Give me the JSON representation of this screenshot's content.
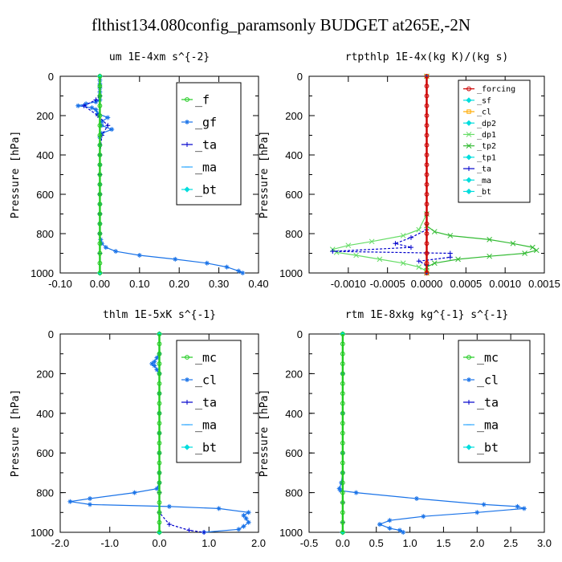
{
  "figure_title": "flthist134.080config_paramsonly  BUDGET at265E,-2N",
  "chart_data": [
    {
      "type": "line",
      "title": "um   1E-4xm s^{-2}",
      "ylabel": "Pressure [hPa]",
      "xlim": [
        -0.1,
        0.4
      ],
      "xticks": [
        "-0.10",
        "0.00",
        "0.10",
        "0.20",
        "0.30",
        "0.40"
      ],
      "xtick_values": [
        -0.1,
        0.0,
        0.1,
        0.2,
        0.3,
        0.4
      ],
      "ylim": [
        1000,
        0
      ],
      "yticks": [
        "0",
        "200",
        "400",
        "600",
        "800",
        "1000"
      ],
      "ytick_values": [
        0,
        200,
        400,
        600,
        800,
        1000
      ],
      "legend": {
        "position": "top-right",
        "entries": [
          "_f",
          "_gf",
          "_ta",
          "_ma",
          "_bt"
        ]
      },
      "series": [
        {
          "name": "_gf",
          "color": "#1a73e8",
          "style": "solid",
          "marker": "star",
          "p": [
            0,
            20,
            40,
            60,
            80,
            100,
            120,
            130,
            140,
            150,
            160,
            170,
            190,
            210,
            230,
            250,
            270,
            290,
            310,
            350,
            400,
            450,
            500,
            550,
            600,
            650,
            700,
            750,
            800,
            830,
            850,
            870,
            890,
            910,
            930,
            950,
            970,
            990,
            1000
          ],
          "x": [
            0.0,
            0.0,
            0.0,
            0.0,
            0.0,
            0.0,
            0.0,
            -0.01,
            -0.035,
            -0.055,
            -0.02,
            -0.01,
            -0.005,
            0.02,
            0.005,
            0.005,
            0.03,
            0.005,
            0.0,
            0.0,
            0.0,
            0.0,
            0.0,
            0.0,
            0.0,
            0.0,
            0.0,
            0.0,
            0.0,
            0.002,
            0.005,
            0.015,
            0.04,
            0.1,
            0.19,
            0.27,
            0.32,
            0.35,
            0.36
          ]
        },
        {
          "name": "_ta",
          "color": "#0000cc",
          "style": "dashed",
          "marker": "plus",
          "p": [
            0,
            100,
            120,
            150,
            200,
            250,
            300,
            400,
            500,
            600,
            700,
            800,
            900,
            1000
          ],
          "x": [
            0.0,
            0.0,
            -0.01,
            -0.04,
            -0.005,
            0.02,
            0.005,
            0.0,
            0.0,
            0.0,
            0.0,
            0.0,
            0.0,
            0.0
          ]
        },
        {
          "name": "_ma",
          "color": "#33aaff",
          "style": "solid",
          "marker": "dash",
          "p": [
            0,
            1000
          ],
          "x": [
            0.0,
            0.0
          ]
        },
        {
          "name": "_bt",
          "color": "#00dddd",
          "style": "solid",
          "marker": "diamond",
          "p": [
            0,
            1000
          ],
          "x": [
            0.0,
            0.0
          ]
        },
        {
          "name": "_f",
          "color": "#22cc22",
          "style": "solid",
          "marker": "circle",
          "p": [
            0,
            50,
            100,
            150,
            200,
            250,
            300,
            350,
            400,
            450,
            500,
            550,
            600,
            650,
            700,
            750,
            800,
            850,
            900,
            950,
            1000
          ],
          "x": [
            0,
            0,
            0,
            0,
            0,
            0,
            0,
            0,
            0,
            0,
            0,
            0,
            0,
            0,
            0,
            0,
            0,
            0,
            0,
            0,
            0
          ]
        }
      ]
    },
    {
      "type": "line",
      "title": "rtpthlp   1E-4x(kg K)/(kg s)",
      "ylabel": "Pressure [hPa]",
      "xlim": [
        -0.0015,
        0.0015
      ],
      "xticks": [
        "-0.0010",
        "-0.0005",
        "0.0000",
        "0.0005",
        "0.0010",
        "0.0015"
      ],
      "xtick_values": [
        -0.001,
        -0.0005,
        0.0,
        0.0005,
        0.001,
        0.0015
      ],
      "ylim": [
        1000,
        0
      ],
      "yticks": [
        "0",
        "200",
        "400",
        "600",
        "800",
        "1000"
      ],
      "ytick_values": [
        0,
        200,
        400,
        600,
        800,
        1000
      ],
      "legend": {
        "position": "top-right",
        "entries": [
          "_forcing",
          "_sf",
          "_cl",
          "_dp2",
          "_dp1",
          "_tp2",
          "_tp1",
          "_ta",
          "_ma",
          "_bt"
        ]
      },
      "series": [
        {
          "name": "_tp2",
          "color": "#33bb33",
          "style": "solid",
          "marker": "x",
          "p": [
            0,
            700,
            760,
            790,
            810,
            830,
            850,
            870,
            885,
            900,
            915,
            930,
            950,
            970,
            990,
            1000
          ],
          "x": [
            0.0,
            0.0,
            0.0,
            0.0001,
            0.0003,
            0.0008,
            0.0011,
            0.00135,
            0.0014,
            0.00125,
            0.0008,
            0.0004,
            0.0001,
            0.0,
            0.0,
            0.0
          ]
        },
        {
          "name": "_dp1",
          "color": "#66dd66",
          "style": "solid",
          "marker": "x",
          "p": [
            0,
            700,
            780,
            810,
            840,
            860,
            880,
            895,
            910,
            930,
            950,
            970,
            990,
            1000
          ],
          "x": [
            0.0,
            0.0,
            -0.0001,
            -0.0003,
            -0.0007,
            -0.001,
            -0.0012,
            -0.00115,
            -0.0009,
            -0.0006,
            -0.0003,
            -0.0001,
            0.0,
            0.0
          ]
        },
        {
          "name": "_ta",
          "color": "#0000cc",
          "style": "dashed",
          "marker": "plus",
          "p": [
            0,
            780,
            820,
            850,
            870,
            890,
            900,
            920,
            940,
            960,
            1000
          ],
          "x": [
            0.0,
            0.0,
            -0.0002,
            -0.0004,
            -0.0002,
            -0.0012,
            0.0003,
            0.0003,
            -0.0001,
            0.0,
            0.0
          ]
        },
        {
          "name": "_cl",
          "color": "#ffaa00",
          "style": "solid",
          "marker": "square",
          "p": [
            0,
            1000
          ],
          "x": [
            0.0,
            0.0
          ]
        },
        {
          "name": "_forcing",
          "color": "#cc0000",
          "style": "solid",
          "marker": "circle",
          "p": [
            0,
            50,
            100,
            150,
            200,
            250,
            300,
            350,
            400,
            450,
            500,
            550,
            600,
            650,
            700,
            750,
            800,
            850,
            900,
            950,
            1000
          ],
          "x": [
            0,
            0,
            0,
            0,
            0,
            0,
            0,
            0,
            0,
            0,
            0,
            0,
            0,
            0,
            0,
            0,
            0,
            0,
            0,
            0,
            0
          ]
        }
      ]
    },
    {
      "type": "line",
      "title": "thlm   1E-5xK s^{-1}",
      "ylabel": "Pressure [hPa]",
      "xlim": [
        -2.0,
        2.0
      ],
      "xticks": [
        "-2.0",
        "-1.0",
        "0.0",
        "1.0",
        "2.0"
      ],
      "xtick_values": [
        -2.0,
        -1.0,
        0.0,
        1.0,
        2.0
      ],
      "ylim": [
        1000,
        0
      ],
      "yticks": [
        "0",
        "200",
        "400",
        "600",
        "800",
        "1000"
      ],
      "ytick_values": [
        0,
        200,
        400,
        600,
        800,
        1000
      ],
      "legend": {
        "position": "top-right",
        "entries": [
          "_mc",
          "_cl",
          "_ta",
          "_ma",
          "_bt"
        ]
      },
      "series": [
        {
          "name": "_cl",
          "color": "#1a73e8",
          "style": "solid",
          "marker": "star",
          "p": [
            0,
            100,
            120,
            140,
            150,
            160,
            180,
            200,
            300,
            400,
            500,
            600,
            700,
            750,
            780,
            800,
            830,
            845,
            860,
            870,
            880,
            900,
            915,
            930,
            950,
            970,
            985,
            1000
          ],
          "x": [
            0.0,
            0.0,
            -0.05,
            -0.1,
            -0.15,
            -0.1,
            -0.05,
            0.0,
            0.0,
            0.0,
            0.0,
            0.0,
            0.0,
            0.0,
            -0.05,
            -0.5,
            -1.4,
            -1.8,
            -1.4,
            0.2,
            1.2,
            1.8,
            1.7,
            1.75,
            1.8,
            1.7,
            1.6,
            0.9
          ]
        },
        {
          "name": "_ta",
          "color": "#0000cc",
          "style": "dashed",
          "marker": "plus",
          "p": [
            0,
            800,
            900,
            960,
            990,
            1000
          ],
          "x": [
            0.0,
            0.0,
            0.0,
            0.2,
            0.6,
            0.9
          ]
        },
        {
          "name": "_ma",
          "color": "#33aaff",
          "style": "solid",
          "marker": "dash",
          "p": [
            0,
            1000
          ],
          "x": [
            0.0,
            0.0
          ]
        },
        {
          "name": "_bt",
          "color": "#00dddd",
          "style": "solid",
          "marker": "diamond",
          "p": [
            0,
            1000
          ],
          "x": [
            0.0,
            0.0
          ]
        },
        {
          "name": "_mc",
          "color": "#22cc22",
          "style": "solid",
          "marker": "circle",
          "p": [
            0,
            50,
            100,
            150,
            200,
            250,
            300,
            350,
            400,
            450,
            500,
            550,
            600,
            650,
            700,
            750,
            800,
            850,
            900,
            950,
            1000
          ],
          "x": [
            0,
            0,
            0,
            0,
            0,
            0,
            0,
            0,
            0,
            0,
            0,
            0,
            0,
            0,
            0,
            0,
            0,
            0,
            0,
            0,
            0
          ]
        }
      ]
    },
    {
      "type": "line",
      "title": "rtm   1E-8xkg kg^{-1} s^{-1}",
      "ylabel": "Pressure [hPa]",
      "xlim": [
        -0.5,
        3.0
      ],
      "xticks": [
        "-0.5",
        "0.0",
        "0.5",
        "1.0",
        "1.5",
        "2.0",
        "2.5",
        "3.0"
      ],
      "xtick_values": [
        -0.5,
        0.0,
        0.5,
        1.0,
        1.5,
        2.0,
        2.5,
        3.0
      ],
      "ylim": [
        1000,
        0
      ],
      "yticks": [
        "0",
        "200",
        "400",
        "600",
        "800",
        "1000"
      ],
      "ytick_values": [
        0,
        200,
        400,
        600,
        800,
        1000
      ],
      "legend": {
        "position": "top-right",
        "entries": [
          "_mc",
          "_cl",
          "_ta",
          "_ma",
          "_bt"
        ]
      },
      "series": [
        {
          "name": "_cl",
          "color": "#1a73e8",
          "style": "solid",
          "marker": "star",
          "p": [
            0,
            200,
            400,
            600,
            700,
            750,
            780,
            790,
            800,
            830,
            860,
            870,
            880,
            900,
            920,
            940,
            960,
            980,
            990,
            1000
          ],
          "x": [
            0.0,
            0.0,
            0.0,
            0.0,
            0.0,
            -0.02,
            -0.05,
            -0.03,
            0.2,
            1.1,
            2.1,
            2.6,
            2.7,
            2.0,
            1.2,
            0.7,
            0.55,
            0.7,
            0.85,
            0.9
          ]
        },
        {
          "name": "_ta",
          "color": "#0000cc",
          "style": "dashed",
          "marker": "plus",
          "p": [
            0,
            850,
            950,
            1000
          ],
          "x": [
            0.0,
            0.0,
            0.0,
            0.0
          ]
        },
        {
          "name": "_ma",
          "color": "#33aaff",
          "style": "solid",
          "marker": "dash",
          "p": [
            0,
            1000
          ],
          "x": [
            0.0,
            0.0
          ]
        },
        {
          "name": "_bt",
          "color": "#00dddd",
          "style": "solid",
          "marker": "diamond",
          "p": [
            0,
            1000
          ],
          "x": [
            0.0,
            0.0
          ]
        },
        {
          "name": "_mc",
          "color": "#22cc22",
          "style": "solid",
          "marker": "circle",
          "p": [
            0,
            50,
            100,
            150,
            200,
            250,
            300,
            350,
            400,
            450,
            500,
            550,
            600,
            650,
            700,
            750,
            800,
            850,
            900,
            950,
            1000
          ],
          "x": [
            0,
            0,
            0,
            0,
            0,
            0,
            0,
            0,
            0,
            0,
            0,
            0,
            0,
            0,
            0,
            0,
            0,
            0,
            0,
            0,
            0
          ]
        }
      ]
    }
  ]
}
